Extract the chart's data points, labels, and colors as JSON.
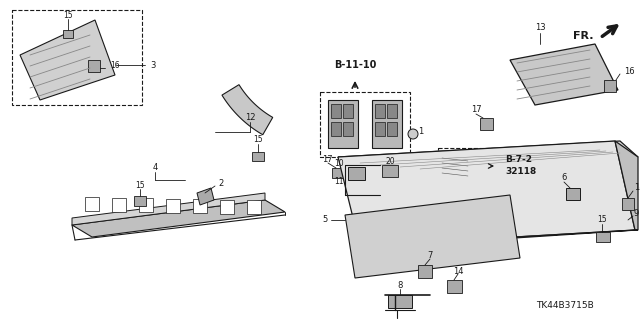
{
  "bg_color": "#ffffff",
  "line_color": "#1a1a1a",
  "figsize": [
    6.4,
    3.19
  ],
  "dpi": 100,
  "diagram_code": "TK44B3715B",
  "fr_text": "FR.",
  "b1110_text": "B-11-10",
  "b72_text": "B-7-2",
  "b72_num": "32118"
}
